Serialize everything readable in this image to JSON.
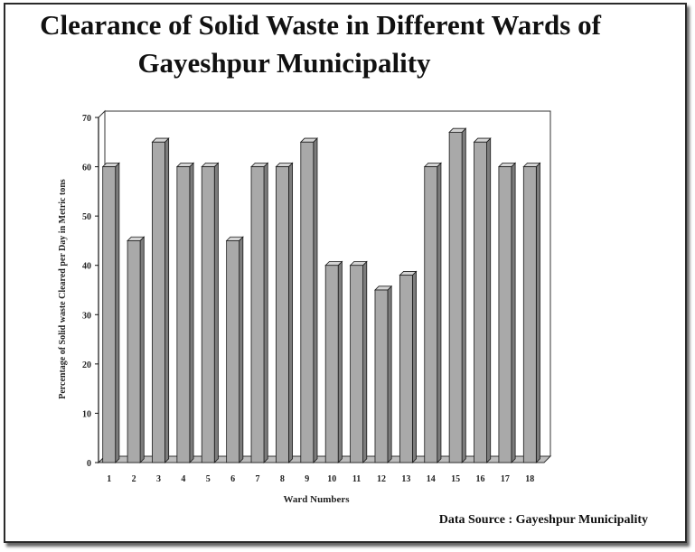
{
  "title_line1": "Clearance of Solid Waste in Different Wards of",
  "title_line2": "Gayeshpur Municipality",
  "source": "Data Source : Gayeshpur Municipality",
  "chart_data": {
    "type": "bar",
    "title": "Clearance of Solid Waste in Different Wards of Gayeshpur Municipality",
    "xlabel": "Ward Numbers",
    "ylabel": "Percentage of Solid waste Cleared per Day in Metric tons",
    "categories": [
      "1",
      "2",
      "3",
      "4",
      "5",
      "6",
      "7",
      "8",
      "9",
      "10",
      "11",
      "12",
      "13",
      "14",
      "15",
      "16",
      "17",
      "18"
    ],
    "values": [
      60,
      45,
      65,
      60,
      60,
      45,
      60,
      60,
      65,
      40,
      40,
      35,
      38,
      60,
      67,
      65,
      60,
      60
    ],
    "ylim": [
      0,
      70
    ],
    "yticks": [
      0,
      10,
      20,
      30,
      40,
      50,
      60,
      70
    ],
    "grid": false,
    "legend": "none",
    "colors": {
      "bar_front": "#a9a9a9",
      "bar_side": "#7c7c7c",
      "bar_top": "#d4d4d4",
      "axis": "#333333"
    }
  }
}
